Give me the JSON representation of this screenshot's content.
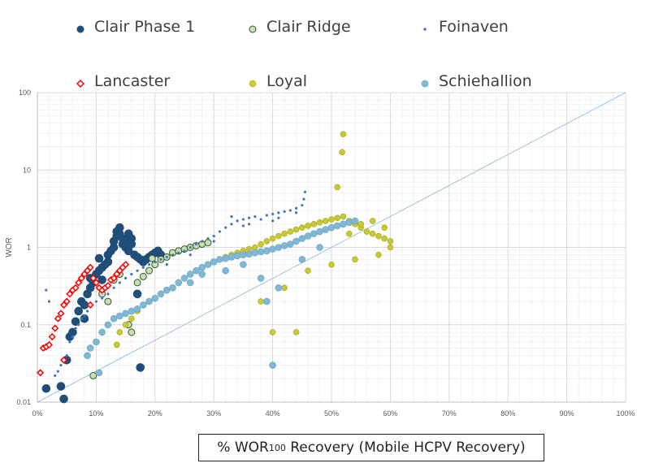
{
  "chart_data": {
    "type": "scatter",
    "title": "",
    "xlabel_main": "% WOR",
    "xlabel_sub": "100",
    "xlabel_rest": " Recovery (Mobile HCPV Recovery)",
    "ylabel": "WOR",
    "yscale": "log",
    "xlim": [
      0,
      100
    ],
    "ylim": [
      0.01,
      100
    ],
    "x_ticks": [
      "0%",
      "10%",
      "20%",
      "30%",
      "40%",
      "50%",
      "60%",
      "70%",
      "80%",
      "90%",
      "100%"
    ],
    "y_ticks": [
      "0.01",
      "0.1",
      "1",
      "10",
      "100"
    ],
    "grid": true,
    "legend_position": "top",
    "reference_line": {
      "x": [
        0,
        100
      ],
      "y": [
        0.01,
        100
      ],
      "color": "#9dc3e6"
    },
    "series": [
      {
        "name": "Clair Phase 1",
        "marker": "circle-filled",
        "color": "#1f4e79",
        "size": 5,
        "points": [
          [
            1.5,
            0.015
          ],
          [
            4.5,
            0.011
          ],
          [
            4,
            0.016
          ],
          [
            5,
            0.035
          ],
          [
            5.5,
            0.07
          ],
          [
            6,
            0.08
          ],
          [
            6.5,
            0.11
          ],
          [
            7,
            0.15
          ],
          [
            7.5,
            0.2
          ],
          [
            8,
            0.18
          ],
          [
            8.5,
            0.25
          ],
          [
            9,
            0.3
          ],
          [
            9,
            0.4
          ],
          [
            9.5,
            0.35
          ],
          [
            10,
            0.45
          ],
          [
            10.5,
            0.5
          ],
          [
            11,
            0.55
          ],
          [
            11.5,
            0.6
          ],
          [
            12,
            0.65
          ],
          [
            12,
            0.8
          ],
          [
            12.5,
            0.9
          ],
          [
            13,
            1.0
          ],
          [
            13,
            1.2
          ],
          [
            13.5,
            1.4
          ],
          [
            13.5,
            1.6
          ],
          [
            14,
            1.8
          ],
          [
            14,
            1.5
          ],
          [
            14.5,
            1.3
          ],
          [
            14.5,
            1.1
          ],
          [
            15,
            1.2
          ],
          [
            15,
            1.0
          ],
          [
            15.5,
            0.9
          ],
          [
            15.5,
            1.5
          ],
          [
            16,
            1.3
          ],
          [
            16,
            1.1
          ],
          [
            16.5,
            0.8
          ],
          [
            17,
            0.75
          ],
          [
            17.5,
            0.7
          ],
          [
            18,
            0.65
          ],
          [
            18.5,
            0.7
          ],
          [
            19,
            0.75
          ],
          [
            19.5,
            0.8
          ],
          [
            20,
            0.85
          ],
          [
            20.5,
            0.9
          ],
          [
            21,
            0.8
          ],
          [
            17.5,
            0.028
          ],
          [
            17,
            0.25
          ],
          [
            8,
            0.12
          ],
          [
            10.5,
            0.72
          ],
          [
            11,
            0.38
          ]
        ]
      },
      {
        "name": "Clair Ridge",
        "marker": "circle-open",
        "color": "#70ad47",
        "size": 4,
        "points": [
          [
            9.5,
            0.022
          ],
          [
            11,
            0.25
          ],
          [
            12,
            0.2
          ],
          [
            13,
            0.38
          ],
          [
            14,
            0.45
          ],
          [
            15.5,
            0.1
          ],
          [
            16,
            0.08
          ],
          [
            17,
            0.35
          ],
          [
            18,
            0.42
          ],
          [
            19,
            0.5
          ],
          [
            20,
            0.6
          ],
          [
            21,
            0.7
          ],
          [
            22,
            0.75
          ],
          [
            23,
            0.85
          ],
          [
            24,
            0.9
          ],
          [
            25,
            0.95
          ],
          [
            26,
            1.0
          ],
          [
            27,
            1.05
          ],
          [
            28,
            1.1
          ],
          [
            29,
            1.15
          ],
          [
            19.5,
            0.72
          ]
        ]
      },
      {
        "name": "Foinaven",
        "marker": "dot",
        "color": "#4472c4",
        "size": 1.6,
        "points": [
          [
            1.5,
            0.28
          ],
          [
            2,
            0.2
          ],
          [
            3,
            0.022
          ],
          [
            3.5,
            0.025
          ],
          [
            4,
            0.03
          ],
          [
            4.5,
            0.035
          ],
          [
            5,
            0.04
          ],
          [
            5.5,
            0.06
          ],
          [
            6,
            0.07
          ],
          [
            6.5,
            0.09
          ],
          [
            7,
            0.1
          ],
          [
            7.5,
            0.12
          ],
          [
            8,
            0.13
          ],
          [
            8.5,
            0.15
          ],
          [
            9,
            0.18
          ],
          [
            10,
            0.2
          ],
          [
            11,
            0.22
          ],
          [
            12,
            0.25
          ],
          [
            13,
            0.3
          ],
          [
            14,
            0.35
          ],
          [
            15,
            0.4
          ],
          [
            16,
            0.45
          ],
          [
            17,
            0.5
          ],
          [
            18,
            0.55
          ],
          [
            19,
            0.6
          ],
          [
            20,
            0.65
          ],
          [
            21,
            0.7
          ],
          [
            22,
            0.75
          ],
          [
            23,
            0.8
          ],
          [
            24,
            0.85
          ],
          [
            25,
            0.9
          ],
          [
            26,
            1.0
          ],
          [
            27,
            1.1
          ],
          [
            28,
            1.2
          ],
          [
            29,
            1.3
          ],
          [
            30,
            1.4
          ],
          [
            31,
            1.6
          ],
          [
            32,
            1.8
          ],
          [
            33,
            2.0
          ],
          [
            34,
            2.2
          ],
          [
            35,
            2.3
          ],
          [
            36,
            2.4
          ],
          [
            37,
            2.5
          ],
          [
            38,
            2.3
          ],
          [
            39,
            2.6
          ],
          [
            40,
            2.7
          ],
          [
            41,
            2.8
          ],
          [
            42,
            2.9
          ],
          [
            43,
            3.0
          ],
          [
            44,
            3.2
          ],
          [
            45,
            3.5
          ],
          [
            45.3,
            4.2
          ],
          [
            45.5,
            5.2
          ],
          [
            33,
            2.5
          ],
          [
            36,
            2.0
          ],
          [
            41,
            2.4
          ],
          [
            44,
            2.8
          ],
          [
            26,
            0.8
          ],
          [
            22,
            0.6
          ],
          [
            30,
            1.2
          ],
          [
            35,
            1.9
          ],
          [
            40,
            2.2
          ]
        ]
      },
      {
        "name": "Lancaster",
        "marker": "diamond-open",
        "color": "#ff0000",
        "size": 3.5,
        "points": [
          [
            0.5,
            0.024
          ],
          [
            1,
            0.05
          ],
          [
            1.5,
            0.052
          ],
          [
            2,
            0.055
          ],
          [
            2.5,
            0.07
          ],
          [
            3,
            0.09
          ],
          [
            3.5,
            0.12
          ],
          [
            4,
            0.14
          ],
          [
            4.5,
            0.18
          ],
          [
            5,
            0.2
          ],
          [
            5.5,
            0.25
          ],
          [
            6,
            0.28
          ],
          [
            6.5,
            0.3
          ],
          [
            7,
            0.35
          ],
          [
            7.5,
            0.4
          ],
          [
            8,
            0.45
          ],
          [
            8.5,
            0.5
          ],
          [
            9,
            0.55
          ],
          [
            9.5,
            0.4
          ],
          [
            10,
            0.35
          ],
          [
            10.5,
            0.3
          ],
          [
            11,
            0.28
          ],
          [
            11.5,
            0.3
          ],
          [
            12,
            0.32
          ],
          [
            12.5,
            0.38
          ],
          [
            13,
            0.4
          ],
          [
            13.5,
            0.45
          ],
          [
            14,
            0.5
          ],
          [
            14.5,
            0.55
          ],
          [
            15,
            0.6
          ],
          [
            4.5,
            0.035
          ],
          [
            9,
            0.18
          ]
        ]
      },
      {
        "name": "Loyal",
        "marker": "circle-filled",
        "color": "#c8c832",
        "size": 3.5,
        "points": [
          [
            13.5,
            0.055
          ],
          [
            14,
            0.08
          ],
          [
            15,
            0.1
          ],
          [
            16,
            0.12
          ],
          [
            17,
            0.15
          ],
          [
            18,
            0.18
          ],
          [
            19,
            0.2
          ],
          [
            20,
            0.22
          ],
          [
            21,
            0.25
          ],
          [
            22,
            0.28
          ],
          [
            23,
            0.3
          ],
          [
            24,
            0.35
          ],
          [
            25,
            0.4
          ],
          [
            26,
            0.45
          ],
          [
            27,
            0.5
          ],
          [
            28,
            0.55
          ],
          [
            29,
            0.6
          ],
          [
            30,
            0.65
          ],
          [
            31,
            0.7
          ],
          [
            32,
            0.75
          ],
          [
            33,
            0.8
          ],
          [
            34,
            0.85
          ],
          [
            35,
            0.9
          ],
          [
            36,
            0.95
          ],
          [
            37,
            1.0
          ],
          [
            38,
            1.1
          ],
          [
            39,
            1.2
          ],
          [
            40,
            1.3
          ],
          [
            41,
            1.4
          ],
          [
            42,
            1.5
          ],
          [
            43,
            1.6
          ],
          [
            44,
            1.7
          ],
          [
            45,
            1.8
          ],
          [
            46,
            1.9
          ],
          [
            47,
            2.0
          ],
          [
            48,
            2.1
          ],
          [
            49,
            2.2
          ],
          [
            50,
            2.3
          ],
          [
            51,
            2.4
          ],
          [
            52,
            2.5
          ],
          [
            53,
            2.2
          ],
          [
            54,
            2.0
          ],
          [
            55,
            1.8
          ],
          [
            56,
            1.6
          ],
          [
            57,
            1.5
          ],
          [
            58,
            1.4
          ],
          [
            59,
            1.3
          ],
          [
            60,
            1.2
          ],
          [
            51,
            6.0
          ],
          [
            51.8,
            17
          ],
          [
            52,
            29
          ],
          [
            40,
            0.08
          ],
          [
            44,
            0.08
          ],
          [
            38,
            0.2
          ],
          [
            42,
            0.3
          ],
          [
            46,
            0.5
          ],
          [
            50,
            0.6
          ],
          [
            54,
            0.7
          ],
          [
            58,
            0.8
          ],
          [
            60,
            1.0
          ],
          [
            53,
            1.5
          ],
          [
            55,
            2.0
          ],
          [
            57,
            2.2
          ],
          [
            59,
            1.8
          ]
        ]
      },
      {
        "name": "Schiehallion",
        "marker": "circle-filled",
        "color": "#7fb7d4",
        "size": 4,
        "points": [
          [
            8.5,
            0.04
          ],
          [
            9,
            0.05
          ],
          [
            10,
            0.06
          ],
          [
            10.5,
            0.024
          ],
          [
            11,
            0.08
          ],
          [
            12,
            0.1
          ],
          [
            13,
            0.12
          ],
          [
            14,
            0.13
          ],
          [
            15,
            0.14
          ],
          [
            16,
            0.15
          ],
          [
            17,
            0.16
          ],
          [
            18,
            0.18
          ],
          [
            19,
            0.2
          ],
          [
            20,
            0.22
          ],
          [
            21,
            0.25
          ],
          [
            22,
            0.28
          ],
          [
            23,
            0.3
          ],
          [
            24,
            0.35
          ],
          [
            25,
            0.4
          ],
          [
            26,
            0.45
          ],
          [
            27,
            0.5
          ],
          [
            28,
            0.55
          ],
          [
            29,
            0.6
          ],
          [
            30,
            0.65
          ],
          [
            31,
            0.7
          ],
          [
            32,
            0.72
          ],
          [
            33,
            0.75
          ],
          [
            34,
            0.78
          ],
          [
            35,
            0.8
          ],
          [
            36,
            0.82
          ],
          [
            37,
            0.85
          ],
          [
            38,
            0.88
          ],
          [
            39,
            0.9
          ],
          [
            40,
            0.95
          ],
          [
            41,
            1.0
          ],
          [
            42,
            1.05
          ],
          [
            43,
            1.1
          ],
          [
            44,
            1.2
          ],
          [
            45,
            1.3
          ],
          [
            46,
            1.4
          ],
          [
            47,
            1.5
          ],
          [
            48,
            1.6
          ],
          [
            49,
            1.7
          ],
          [
            50,
            1.8
          ],
          [
            51,
            1.9
          ],
          [
            52,
            2.0
          ],
          [
            53,
            2.1
          ],
          [
            54,
            2.2
          ],
          [
            40,
            0.03
          ],
          [
            39,
            0.2
          ],
          [
            41,
            0.3
          ],
          [
            35,
            0.6
          ],
          [
            45,
            0.7
          ],
          [
            48,
            1.0
          ],
          [
            32,
            0.5
          ],
          [
            28,
            0.45
          ],
          [
            26,
            0.35
          ],
          [
            38,
            0.4
          ]
        ]
      }
    ]
  },
  "legend": [
    {
      "name": "Clair Phase 1",
      "color": "#1f4e79",
      "marker": "circle-filled"
    },
    {
      "name": "Clair Ridge",
      "color": "#70ad47",
      "marker": "circle-open"
    },
    {
      "name": "Foinaven",
      "color": "#4472c4",
      "marker": "dot"
    },
    {
      "name": "Lancaster",
      "color": "#ff0000",
      "marker": "diamond-open"
    },
    {
      "name": "Loyal",
      "color": "#c8c832",
      "marker": "circle-filled"
    },
    {
      "name": "Schiehallion",
      "color": "#7fb7d4",
      "marker": "circle-filled"
    }
  ]
}
